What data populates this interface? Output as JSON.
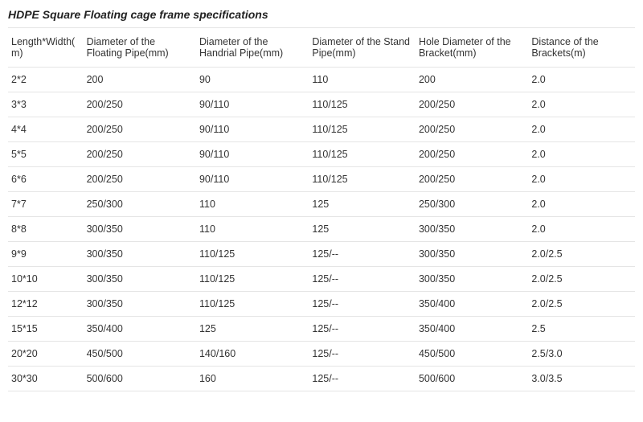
{
  "title": "HDPE Square Floating cage frame specifications",
  "table": {
    "type": "table",
    "columns": [
      {
        "label": "Length*Width(m)",
        "width_pct": 12
      },
      {
        "label": "Diameter of the Floating Pipe(mm)",
        "width_pct": 18
      },
      {
        "label": "Diameter of the Handrial Pipe(mm)",
        "width_pct": 18
      },
      {
        "label": "Diameter of the Stand Pipe(mm)",
        "width_pct": 17
      },
      {
        "label": "Hole Diameter of the Bracket(mm)",
        "width_pct": 18
      },
      {
        "label": "Distance of the Brackets(m)",
        "width_pct": 17
      }
    ],
    "rows": [
      [
        "2*2",
        "200",
        "90",
        "110",
        "200",
        "2.0"
      ],
      [
        "3*3",
        "200/250",
        "90/110",
        "110/125",
        "200/250",
        "2.0"
      ],
      [
        "4*4",
        "200/250",
        "90/110",
        "110/125",
        "200/250",
        "2.0"
      ],
      [
        "5*5",
        "200/250",
        "90/110",
        "110/125",
        "200/250",
        "2.0"
      ],
      [
        "6*6",
        "200/250",
        "90/110",
        "110/125",
        "200/250",
        "2.0"
      ],
      [
        "7*7",
        "250/300",
        "110",
        "125",
        "250/300",
        "2.0"
      ],
      [
        "8*8",
        "300/350",
        "110",
        "125",
        "300/350",
        "2.0"
      ],
      [
        "9*9",
        "300/350",
        "110/125",
        "125/--",
        "300/350",
        "2.0/2.5"
      ],
      [
        "10*10",
        "300/350",
        "110/125",
        "125/--",
        "300/350",
        "2.0/2.5"
      ],
      [
        "12*12",
        "300/350",
        "110/125",
        "125/--",
        "350/400",
        "2.0/2.5"
      ],
      [
        "15*15",
        "350/400",
        "125",
        "125/--",
        "350/400",
        "2.5"
      ],
      [
        "20*20",
        "450/500",
        "140/160",
        "125/--",
        "450/500",
        "2.5/3.0"
      ],
      [
        "30*30",
        "500/600",
        "160",
        "125/--",
        "500/600",
        "3.0/3.5"
      ]
    ],
    "header_fontsize": 12.5,
    "cell_fontsize": 12.5,
    "border_color": "#e5e5e5",
    "text_color": "#333333",
    "background_color": "#ffffff"
  }
}
